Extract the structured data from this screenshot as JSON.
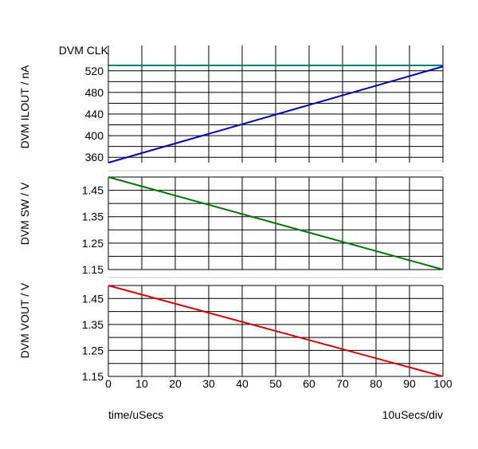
{
  "footer": {
    "x_axis_label": "time/uSecs",
    "scale_label": "10uSecs/div"
  },
  "colors": {
    "grid": "#000000",
    "divider": "#c8c8c8",
    "clk": "#008080",
    "ilout": "#0000b4",
    "sw": "#007800",
    "vout": "#dc0000"
  },
  "chart_data": [
    {
      "type": "line",
      "id": "clk",
      "title": "DVM CLK",
      "xlabel": "time/uSecs",
      "ylabel": "",
      "xlim": [
        0,
        100
      ],
      "xticks": [
        0,
        10,
        20,
        30,
        40,
        50,
        60,
        70,
        80,
        90,
        100
      ],
      "series": [
        {
          "x": [
            0,
            100
          ],
          "y": [
            1,
            1
          ]
        }
      ],
      "grid": true
    },
    {
      "type": "line",
      "id": "ilout",
      "title": "",
      "xlabel": "time/uSecs",
      "ylabel": "DVM ILOUT / nA",
      "xlim": [
        0,
        100
      ],
      "ylim": [
        350,
        530
      ],
      "yticks": [
        360,
        400,
        440,
        480,
        520
      ],
      "ytick_labels": [
        "360",
        "400",
        "440",
        "480",
        "520"
      ],
      "y_grid_step": 20,
      "series": [
        {
          "x": [
            0,
            100
          ],
          "y": [
            350,
            528
          ]
        }
      ],
      "grid": true
    },
    {
      "type": "line",
      "id": "sw",
      "title": "",
      "xlabel": "time/uSecs",
      "ylabel": "DVM SW / V",
      "xlim": [
        0,
        100
      ],
      "ylim": [
        1.15,
        1.5
      ],
      "yticks": [
        1.15,
        1.25,
        1.35,
        1.45
      ],
      "ytick_labels": [
        "1.15",
        "1.25",
        "1.35",
        "1.45"
      ],
      "y_grid_step": 0.05,
      "series": [
        {
          "x": [
            0,
            100
          ],
          "y": [
            1.5,
            1.15
          ]
        }
      ],
      "grid": true
    },
    {
      "type": "line",
      "id": "vout",
      "title": "",
      "xlabel": "time/uSecs",
      "ylabel": "DVM VOUT / V",
      "xlim": [
        0,
        100
      ],
      "xtick_labels": [
        "0",
        "10",
        "20",
        "30",
        "40",
        "50",
        "60",
        "70",
        "80",
        "90",
        "100"
      ],
      "ylim": [
        1.15,
        1.5
      ],
      "yticks": [
        1.15,
        1.25,
        1.35,
        1.45
      ],
      "ytick_labels": [
        "1.15",
        "1.25",
        "1.35",
        "1.45"
      ],
      "y_grid_step": 0.05,
      "series": [
        {
          "x": [
            0,
            100
          ],
          "y": [
            1.5,
            1.15
          ]
        }
      ],
      "grid": true
    }
  ]
}
